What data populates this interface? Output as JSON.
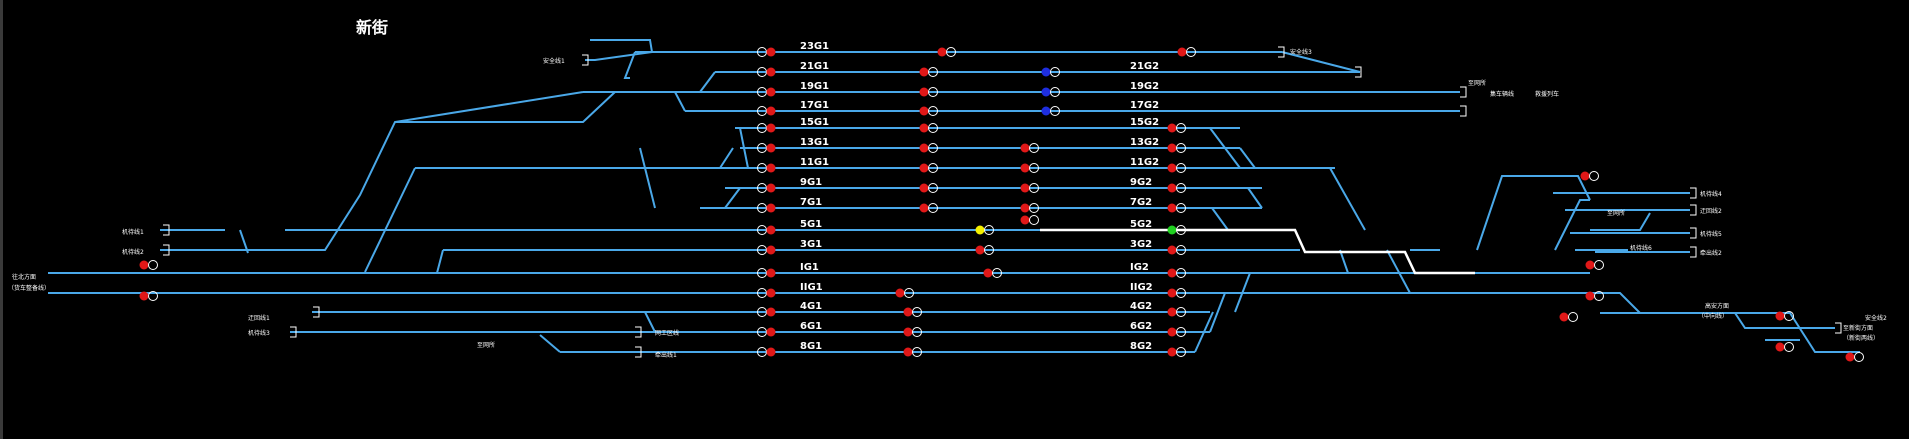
{
  "station": {
    "title": "新街"
  },
  "colors": {
    "background": "#000000",
    "track": "#4aa8e8",
    "route_locked": "#ffffff",
    "signal_red": "#e01818",
    "signal_off": "#ffffff",
    "signal_blue": "#1e2ee0",
    "signal_yellow": "#f4f000",
    "signal_green": "#20d020"
  },
  "track_labels": {
    "t23G1": "23G1",
    "t21G1": "21G1",
    "t19G1": "19G1",
    "t17G1": "17G1",
    "t15G1": "15G1",
    "t13G1": "13G1",
    "t11G1": "11G1",
    "t9G1": "9G1",
    "t7G1": "7G1",
    "t5G1": "5G1",
    "t3G1": "3G1",
    "tIG1": "IG1",
    "tIIG1": "IIG1",
    "t4G1": "4G1",
    "t6G1": "6G1",
    "t8G1": "8G1",
    "t21G2": "21G2",
    "t19G2": "19G2",
    "t17G2": "17G2",
    "t15G2": "15G2",
    "t13G2": "13G2",
    "t11G2": "11G2",
    "t9G2": "9G2",
    "t7G2": "7G2",
    "t5G2": "5G2",
    "t3G2": "3G2",
    "tIG2": "IG2",
    "tIIG2": "IIG2",
    "t4G2": "4G2",
    "t6G2": "6G2",
    "t8G2": "8G2"
  },
  "small_labels": {
    "safety1": "安全线1",
    "safety3": "安全线3",
    "safety2": "安全线2",
    "gongyuan": "至网所",
    "junyuan": "救援列车",
    "jishang": "集车辆线",
    "jiguan1": "机待线1",
    "jiguan2": "机待线2",
    "jiguan3": "机待线3",
    "jiguan4": "机待线4",
    "jiguan5": "机待线5",
    "jiguan6": "机待线6",
    "zhihu2": "迂回线2",
    "zhihu1": "迂回线1",
    "diaoche1": "牵出线1",
    "diaoche2": "牵出线2",
    "wangshou": "网工区线",
    "left_dir_a": "往北方面",
    "left_dir_b": "（货车整备线）",
    "right_dir_a": "至新街方面",
    "right_dir_b": "（新街两线）",
    "right_mid_a": "高安方面",
    "right_mid_b": "（中向线）",
    "zhiwangsuo": "至网所",
    "zhiwangsuo2": "至网所"
  }
}
